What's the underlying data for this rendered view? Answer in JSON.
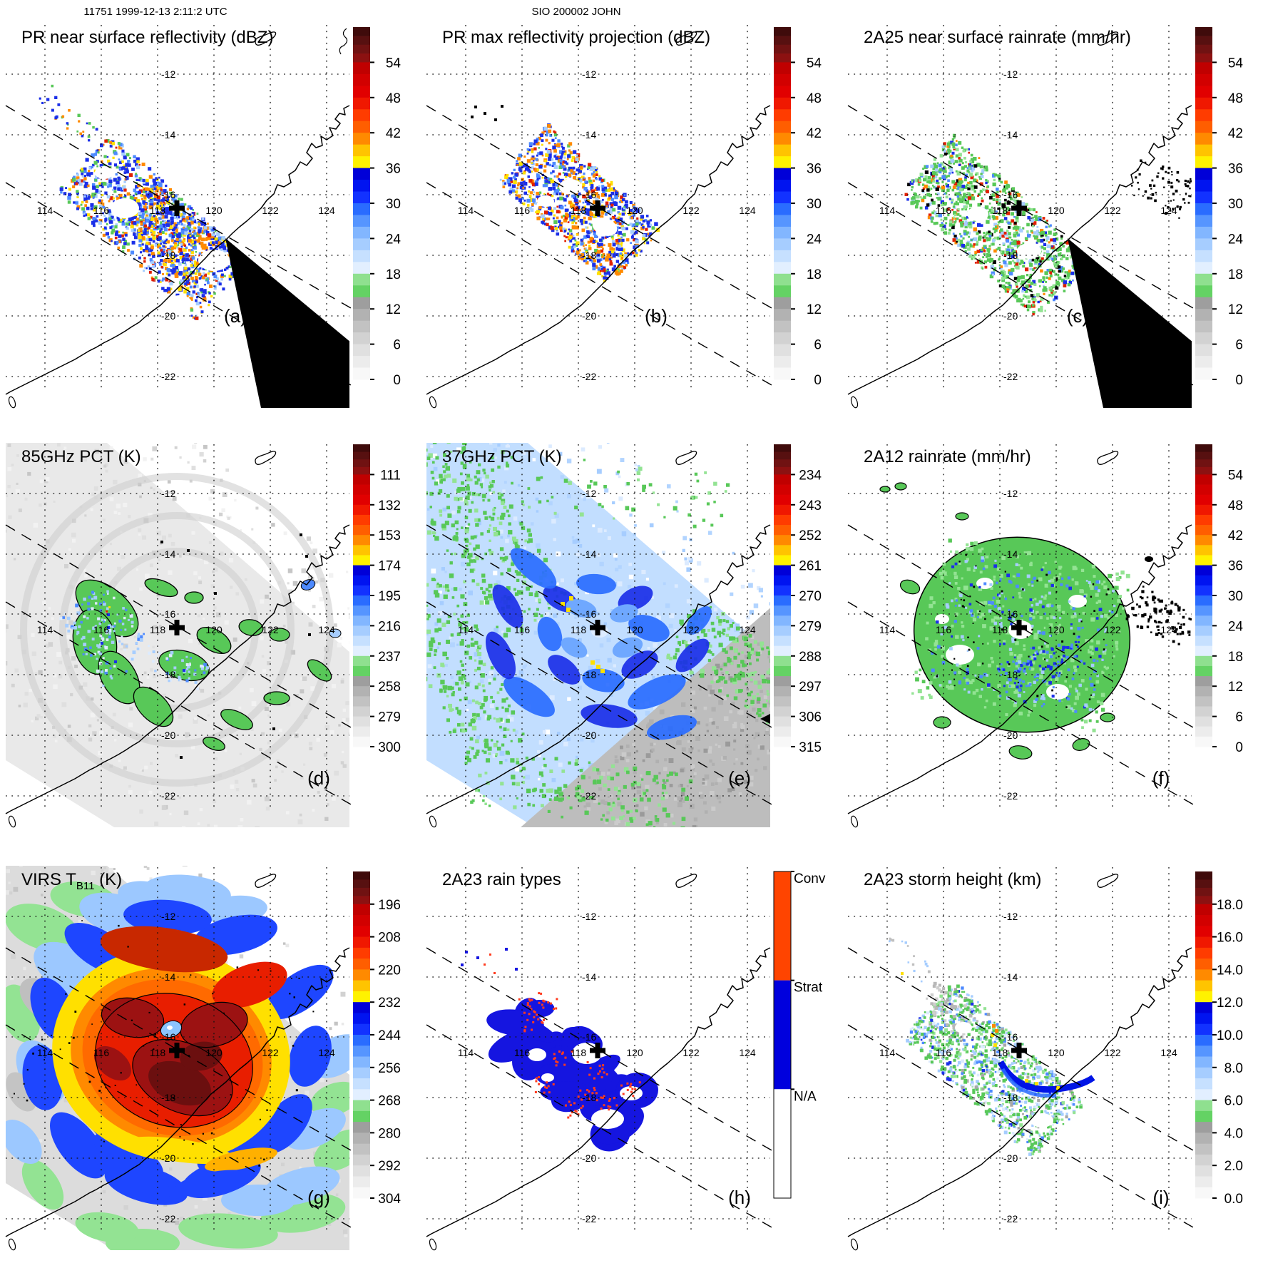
{
  "header": {
    "left": "11751 1999-12-13 2:11:2 UTC",
    "center": "SIO 200002 JOHN"
  },
  "map": {
    "lon_labels": [
      "114",
      "116",
      "118",
      "120",
      "122",
      "124"
    ],
    "lat_labels": [
      "-12",
      "-14",
      "-16",
      "-18",
      "-20",
      "-22"
    ]
  },
  "data_colors": {
    "blue": "#1B2FE8",
    "medBlue": "#4D8AFF",
    "paleBlue": "#A6CDFF",
    "palerBlue": "#DCEBFF",
    "green": "#58C858",
    "lightGreen": "#93E393",
    "orange": "#FF8A00",
    "yellow": "#FFE000",
    "red": "#E02000",
    "darkRed": "#9C1212",
    "maroon": "#6B0F0F",
    "grayBase": "#E9E9E9",
    "tmiBlueBase": "#C2DEFF",
    "grayWedge": "#BDBDBD",
    "black": "#000000",
    "white": "#FFFFFF"
  },
  "colorbar_standard": {
    "cap": [
      "#3F0B0B",
      "#571010",
      "#701212",
      "#8C1111"
    ],
    "blocks": [
      "#C00000",
      "#D20000",
      "#E10000",
      "#F01800",
      "#FF3C00",
      "#FF5E00",
      "#FF8A00",
      "#FFC400",
      "#FFF200",
      "#0000D8",
      "#0014F0",
      "#1232FF",
      "#2A6CFF",
      "#5695FF",
      "#82B6FF",
      "#A6CDFF",
      "#C6E0FF",
      "#E2EFFF",
      "#8FE08F",
      "#64D264",
      "#9E9E9E",
      "#B2B2B2",
      "#C2C2C2",
      "#D2D2D2",
      "#E0E0E0",
      "#ECECEC",
      "#F8F8F8"
    ]
  },
  "colorbar_rain_type": {
    "segments": [
      {
        "label": "Conv",
        "color": "#FF4400"
      },
      {
        "label": "Strat",
        "color": "#0000DD"
      },
      {
        "label": "N/A",
        "color": "#FFFFFF"
      }
    ]
  },
  "panels": [
    {
      "id": "a",
      "letter": "(a)",
      "title": "PR near surface reflectivity (dBZ)",
      "colorbar": "standard",
      "ticks": [
        "54",
        "48",
        "42",
        "36",
        "30",
        "24",
        "18",
        "12",
        "6",
        "0"
      ]
    },
    {
      "id": "b",
      "letter": "(b)",
      "title": "PR max reflectivity projection (dBZ)",
      "colorbar": "standard",
      "ticks": [
        "54",
        "48",
        "42",
        "36",
        "30",
        "24",
        "18",
        "12",
        "6",
        "0"
      ]
    },
    {
      "id": "c",
      "letter": "(c)",
      "title": "2A25 near surface rainrate (mm/hr)",
      "colorbar": "standard",
      "ticks": [
        "54",
        "48",
        "42",
        "36",
        "30",
        "24",
        "18",
        "12",
        "6",
        "0"
      ]
    },
    {
      "id": "d",
      "letter": "(d)",
      "title": "85GHz PCT (K)",
      "colorbar": "standard",
      "ticks": [
        "111",
        "132",
        "153",
        "174",
        "195",
        "216",
        "237",
        "258",
        "279",
        "300"
      ]
    },
    {
      "id": "e",
      "letter": "(e)",
      "title": "37GHz PCT (K)",
      "colorbar": "standard",
      "ticks": [
        "234",
        "243",
        "252",
        "261",
        "270",
        "279",
        "288",
        "297",
        "306",
        "315"
      ]
    },
    {
      "id": "f",
      "letter": "(f)",
      "title": "2A12 rainrate (mm/hr)",
      "colorbar": "standard",
      "ticks": [
        "54",
        "48",
        "42",
        "36",
        "30",
        "24",
        "18",
        "12",
        "6",
        "0"
      ]
    },
    {
      "id": "g",
      "letter": "(g)",
      "title": "VIRS T (K)",
      "title_main": "VIRS T",
      "title_sub": "B11",
      "title_unit": " (K)",
      "colorbar": "standard",
      "ticks": [
        "196",
        "208",
        "220",
        "232",
        "244",
        "256",
        "268",
        "280",
        "292",
        "304"
      ]
    },
    {
      "id": "h",
      "letter": "(h)",
      "title": "2A23 rain types",
      "colorbar": "rain_type",
      "ticks": [
        "Conv",
        "Strat",
        "N/A"
      ]
    },
    {
      "id": "i",
      "letter": "(i)",
      "title": "2A23 storm height (km)",
      "colorbar": "standard",
      "ticks": [
        "18.0",
        "16.0",
        "14.0",
        "12.0",
        "10.0",
        "8.0",
        "6.0",
        "4.0",
        "2.0",
        "0.0"
      ]
    }
  ]
}
